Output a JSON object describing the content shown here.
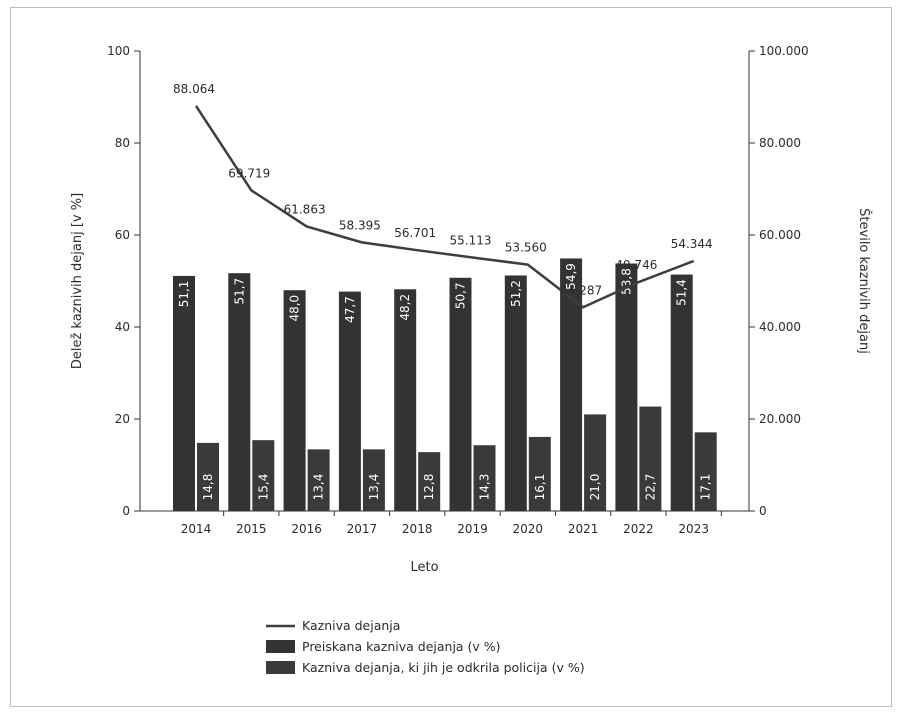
{
  "chart_data": {
    "type": "bar",
    "categories": [
      "2014",
      "2015",
      "2016",
      "2017",
      "2018",
      "2019",
      "2020",
      "2021",
      "2022",
      "2023"
    ],
    "xlabel": "Leto",
    "ylabel_left": "Delež kaznivih dejanj [v %]",
    "ylabel_right": "Število kaznivih dejanj",
    "ylim_left": [
      0,
      100
    ],
    "ylim_right": [
      0,
      100000
    ],
    "yticks_left": [
      "0",
      "20",
      "40",
      "60",
      "80",
      "100"
    ],
    "yticks_right": [
      "0",
      "20.000",
      "40.000",
      "60.000",
      "80.000",
      "100.000"
    ],
    "legend_position": "bottom",
    "series": [
      {
        "name": "Preiskana kazniva dejanja (v %)",
        "kind": "bar",
        "axis": "left",
        "values": [
          51.1,
          51.7,
          48.0,
          47.7,
          48.2,
          50.7,
          51.2,
          54.9,
          53.8,
          51.4
        ],
        "labels": [
          "51,1",
          "51,7",
          "48,0",
          "47,7",
          "48,2",
          "50,7",
          "51,2",
          "54,9",
          "53,8",
          "51,4"
        ],
        "color": "#333333"
      },
      {
        "name": "Kazniva dejanja, ki jih je odkrila policija (v %)",
        "kind": "bar",
        "axis": "left",
        "values": [
          14.8,
          15.4,
          13.4,
          13.4,
          12.8,
          14.3,
          16.1,
          21.0,
          22.7,
          17.1
        ],
        "labels": [
          "14,8",
          "15,4",
          "13,4",
          "13,4",
          "12,8",
          "14,3",
          "16,1",
          "21,0",
          "22,7",
          "17,1"
        ],
        "color": "#3a3a3a"
      },
      {
        "name": "Kazniva dejanja",
        "kind": "line",
        "axis": "right",
        "values": [
          88064,
          69719,
          61863,
          58395,
          56701,
          55113,
          53560,
          44287,
          49746,
          54344
        ],
        "labels": [
          "88.064",
          "69.719",
          "61.863",
          "58.395",
          "56.701",
          "55.113",
          "53.560",
          "44.287",
          "49.746",
          "54.344"
        ],
        "color": "#3d3d3d"
      }
    ]
  }
}
